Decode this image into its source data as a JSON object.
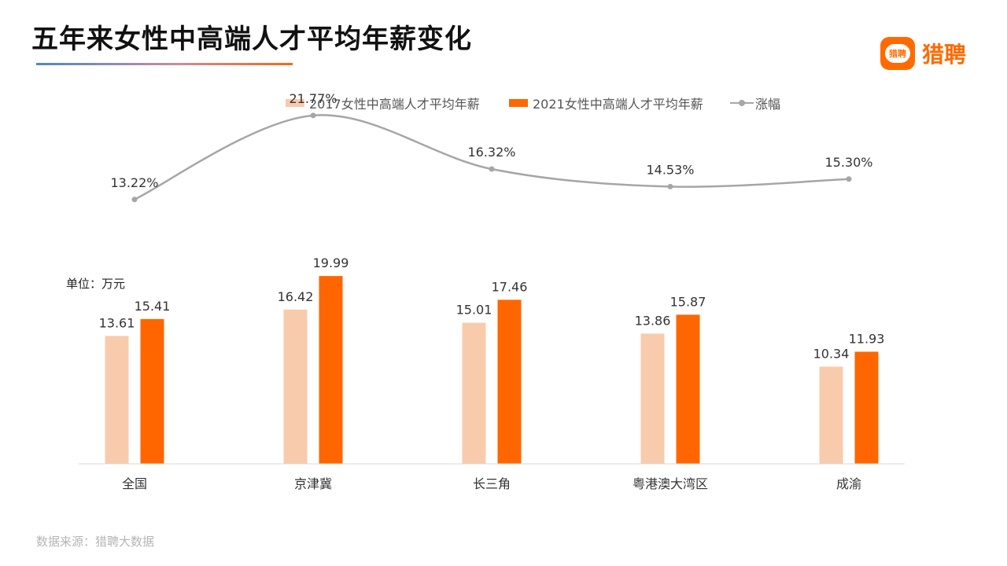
{
  "title": "五年来女性中高端人才平均年薪变化",
  "logo": {
    "text": "猎聘",
    "mark_text": "猎聘",
    "mark_color": "#ff6a00"
  },
  "unit_label": "单位：万元",
  "source": "数据来源：猎聘大数据",
  "colors": {
    "series_2017": "#f8cbad",
    "series_2021": "#ff6600",
    "growth_line": "#a6a6a6",
    "brand": "#ff6a00"
  },
  "chart_data": {
    "type": "bar",
    "categories": [
      "全国",
      "京津冀",
      "长三角",
      "粤港澳大湾区",
      "成渝"
    ],
    "series": [
      {
        "name": "2017女性中高端人才平均年薪",
        "type": "bar",
        "values": [
          13.61,
          16.42,
          15.01,
          13.86,
          10.34
        ]
      },
      {
        "name": "2021女性中高端人才平均年薪",
        "type": "bar",
        "values": [
          15.41,
          19.99,
          17.46,
          15.87,
          11.93
        ]
      },
      {
        "name": "涨幅",
        "type": "line",
        "values": [
          13.22,
          21.77,
          16.32,
          14.53,
          15.3
        ],
        "labels": [
          "13.22%",
          "21.77%",
          "16.32%",
          "14.53%",
          "15.30%"
        ]
      }
    ],
    "ylim": [
      0,
      20
    ],
    "grid": false,
    "legend_position": "top"
  }
}
